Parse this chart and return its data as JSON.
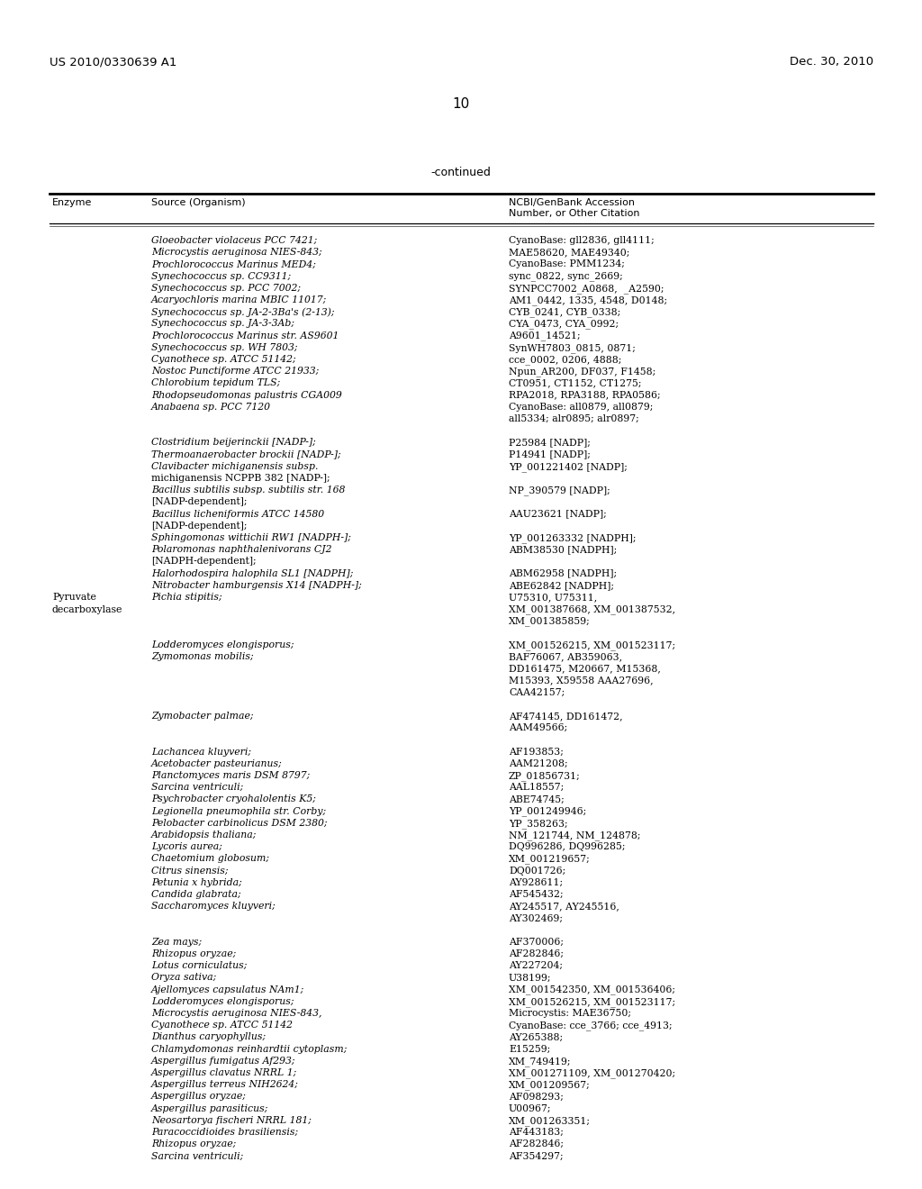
{
  "page_number": "10",
  "patent_number": "US 2010/0330639 A1",
  "patent_date": "Dec. 30, 2010",
  "continued_label": "-continued",
  "col1_header": "Enzyme",
  "col2_header": "Source (Organism)",
  "col3_header_line1": "NCBI/GenBank Accession",
  "col3_header_line2": "Number, or Other Citation",
  "enzyme_label": "Pyruvate\ndecarboxylase",
  "table_rows": [
    {
      "col2": "Gloeobacter violaceus PCC 7421;",
      "col3": "CyanoBase: gll2836, gll4111;",
      "italic2": true
    },
    {
      "col2": "Microcystis aeruginosa NIES-843;",
      "col3": "MAE58620, MAE49340;",
      "italic2": true
    },
    {
      "col2": "Prochlorococcus Marinus MED4;",
      "col3": "CyanoBase: PMM1234;",
      "italic2": true
    },
    {
      "col2": "Synechococcus sp. CC9311;",
      "col3": "sync_0822, sync_2669;",
      "italic2": true
    },
    {
      "col2": "Synechococcus sp. PCC 7002;",
      "col3": "SYNPCC7002_A0868,  _A2590;",
      "italic2": true
    },
    {
      "col2": "Acaryochloris marina MBIC 11017;",
      "col3": "AM1_0442, 1335, 4548, D0148;",
      "italic2": true
    },
    {
      "col2": "Synechococcus sp. JA-2-3Ba's (2-13);",
      "col3": "CYB_0241, CYB_0338;",
      "italic2": true
    },
    {
      "col2": "Synechococcus sp. JA-3-3Ab;",
      "col3": "CYA_0473, CYA_0992;",
      "italic2": true
    },
    {
      "col2": "Prochlorococcus Marinus str. AS9601",
      "col3": "A9601_14521;",
      "italic2": true
    },
    {
      "col2": "Synechococcus sp. WH 7803;",
      "col3": "SynWH7803_0815, 0871;",
      "italic2": true
    },
    {
      "col2": "Cyanothece sp. ATCC 51142;",
      "col3": "cce_0002, 0206, 4888;",
      "italic2": true
    },
    {
      "col2": "Nostoc Punctiforme ATCC 21933;",
      "col3": "Npun_AR200, DF037, F1458;",
      "italic2": true
    },
    {
      "col2": "Chlorobium tepidum TLS;",
      "col3": "CT0951, CT1152, CT1275;",
      "italic2": true
    },
    {
      "col2": "Rhodopseudomonas palustris CGA009",
      "col3": "RPA2018, RPA3188, RPA0586;",
      "italic2": true
    },
    {
      "col2": "Anabaena sp. PCC 7120",
      "col3": "CyanoBase: all0879, all0879;",
      "italic2": true
    },
    {
      "col2": "",
      "col3": "all5334; alr0895; alr0897;",
      "italic2": false
    },
    {
      "col2": "",
      "col3": "",
      "italic2": false
    },
    {
      "col2": "Clostridium beijerinckii [NADP-];",
      "col3": "P25984 [NADP];",
      "italic2": true
    },
    {
      "col2": "Thermoanaerobacter brockii [NADP-];",
      "col3": "P14941 [NADP];",
      "italic2": true
    },
    {
      "col2": "Clavibacter michiganensis subsp.",
      "col3": "YP_001221402 [NADP];",
      "italic2": true
    },
    {
      "col2": "michiganensis NCPPB 382 [NADP-];",
      "col3": "",
      "italic2": false
    },
    {
      "col2": "Bacillus subtilis subsp. subtilis str. 168",
      "col3": "NP_390579 [NADP];",
      "italic2": true
    },
    {
      "col2": "[NADP-dependent];",
      "col3": "",
      "italic2": false
    },
    {
      "col2": "Bacillus licheniformis ATCC 14580",
      "col3": "AAU23621 [NADP];",
      "italic2": true
    },
    {
      "col2": "[NADP-dependent];",
      "col3": "",
      "italic2": false
    },
    {
      "col2": "Sphingomonas wittichii RW1 [NADPH-];",
      "col3": "YP_001263332 [NADPH];",
      "italic2": true
    },
    {
      "col2": "Polaromonas naphthalenivorans CJ2",
      "col3": "ABM38530 [NADPH];",
      "italic2": true
    },
    {
      "col2": "[NADPH-dependent];",
      "col3": "",
      "italic2": false
    },
    {
      "col2": "Halorhodospira halophila SL1 [NADPH];",
      "col3": "ABM62958 [NADPH];",
      "italic2": true
    },
    {
      "col2": "Nitrobacter hamburgensis X14 [NADPH-];",
      "col3": "ABE62842 [NADPH];",
      "italic2": true
    },
    {
      "col2": "Pichia stipitis;",
      "col3": "U75310, U75311,",
      "italic2": true
    },
    {
      "col2": "",
      "col3": "XM_001387668, XM_001387532,",
      "italic2": false
    },
    {
      "col2": "",
      "col3": "XM_001385859;",
      "italic2": false
    },
    {
      "col2": "",
      "col3": "",
      "italic2": false
    },
    {
      "col2": "Lodderomyces elongisporus;",
      "col3": "XM_001526215, XM_001523117;",
      "italic2": true
    },
    {
      "col2": "Zymomonas mobilis;",
      "col3": "BAF76067, AB359063,",
      "italic2": true
    },
    {
      "col2": "",
      "col3": "DD161475, M20667, M15368,",
      "italic2": false
    },
    {
      "col2": "",
      "col3": "M15393, X59558 AAA27696,",
      "italic2": false
    },
    {
      "col2": "",
      "col3": "CAA42157;",
      "italic2": false
    },
    {
      "col2": "",
      "col3": "",
      "italic2": false
    },
    {
      "col2": "Zymobacter palmae;",
      "col3": "AF474145, DD161472,",
      "italic2": true
    },
    {
      "col2": "",
      "col3": "AAM49566;",
      "italic2": false
    },
    {
      "col2": "",
      "col3": "",
      "italic2": false
    },
    {
      "col2": "Lachancea kluyveri;",
      "col3": "AF193853;",
      "italic2": true
    },
    {
      "col2": "Acetobacter pasteurianus;",
      "col3": "AAM21208;",
      "italic2": true
    },
    {
      "col2": "Planctomyces maris DSM 8797;",
      "col3": "ZP_01856731;",
      "italic2": true
    },
    {
      "col2": "Sarcina ventriculi;",
      "col3": "AAL18557;",
      "italic2": true
    },
    {
      "col2": "Psychrobacter cryohalolentis K5;",
      "col3": "ABE74745;",
      "italic2": true
    },
    {
      "col2": "Legionella pneumophila str. Corby;",
      "col3": "YP_001249946;",
      "italic2": true
    },
    {
      "col2": "Pelobacter carbinolicus DSM 2380;",
      "col3": "YP_358263;",
      "italic2": true
    },
    {
      "col2": "Arabidopsis thaliana;",
      "col3": "NM_121744, NM_124878;",
      "italic2": true
    },
    {
      "col2": "Lycoris aurea;",
      "col3": "DQ996286, DQ996285;",
      "italic2": true
    },
    {
      "col2": "Chaetomium globosum;",
      "col3": "XM_001219657;",
      "italic2": true
    },
    {
      "col2": "Citrus sinensis;",
      "col3": "DQ001726;",
      "italic2": true
    },
    {
      "col2": "Petunia x hybrida;",
      "col3": "AY928611;",
      "italic2": true
    },
    {
      "col2": "Candida glabrata;",
      "col3": "AF545432;",
      "italic2": true
    },
    {
      "col2": "Saccharomyces kluyveri;",
      "col3": "AY245517, AY245516,",
      "italic2": true
    },
    {
      "col2": "",
      "col3": "AY302469;",
      "italic2": false
    },
    {
      "col2": "",
      "col3": "",
      "italic2": false
    },
    {
      "col2": "Zea mays;",
      "col3": "AF370006;",
      "italic2": true
    },
    {
      "col2": "Rhizopus oryzae;",
      "col3": "AF282846;",
      "italic2": true
    },
    {
      "col2": "Lotus corniculatus;",
      "col3": "AY227204;",
      "italic2": true
    },
    {
      "col2": "Oryza sativa;",
      "col3": "U38199;",
      "italic2": true
    },
    {
      "col2": "Ajellomyces capsulatus NAm1;",
      "col3": "XM_001542350, XM_001536406;",
      "italic2": true
    },
    {
      "col2": "Lodderomyces elongisporus;",
      "col3": "XM_001526215, XM_001523117;",
      "italic2": true
    },
    {
      "col2": "Microcystis aeruginosa NIES-843,",
      "col3": "Microcystis: MAE36750;",
      "italic2": true
    },
    {
      "col2": "Cyanothece sp. ATCC 51142",
      "col3": "CyanoBase: cce_3766; cce_4913;",
      "italic2": true
    },
    {
      "col2": "Dianthus caryophyllus;",
      "col3": "AY265388;",
      "italic2": true
    },
    {
      "col2": "Chlamydomonas reinhardtii cytoplasm;",
      "col3": "E15259;",
      "italic2": true
    },
    {
      "col2": "Aspergillus fumigatus Af293;",
      "col3": "XM_749419;",
      "italic2": true
    },
    {
      "col2": "Aspergillus clavatus NRRL 1;",
      "col3": "XM_001271109, XM_001270420;",
      "italic2": true
    },
    {
      "col2": "Aspergillus terreus NIH2624;",
      "col3": "XM_001209567;",
      "italic2": true
    },
    {
      "col2": "Aspergillus oryzae;",
      "col3": "AF098293;",
      "italic2": true
    },
    {
      "col2": "Aspergillus parasiticus;",
      "col3": "U00967;",
      "italic2": true
    },
    {
      "col2": "Neosartorya fischeri NRRL 181;",
      "col3": "XM_001263351;",
      "italic2": true
    },
    {
      "col2": "Paracoccidioides brasiliensis;",
      "col3": "AF443183;",
      "italic2": true
    },
    {
      "col2": "Rhizopus oryzae;",
      "col3": "AF282846;",
      "italic2": true
    },
    {
      "col2": "Sarcina ventriculi;",
      "col3": "AF354297;",
      "italic2": true
    }
  ],
  "bg_color": "#ffffff",
  "text_color": "#000000"
}
